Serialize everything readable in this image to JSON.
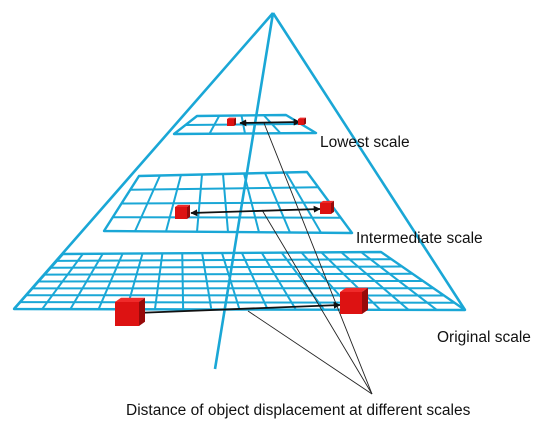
{
  "diagram": {
    "colors": {
      "grid": "#1aa7d6",
      "cube_front": "#dd1212",
      "cube_top": "#f02a2a",
      "cube_side": "#970a0a",
      "arrow": "#111111",
      "leader": "#222222"
    },
    "levels": [
      {
        "id": "lowest",
        "label": "Lowest scale",
        "grid_cells": "4x2"
      },
      {
        "id": "intermediate",
        "label": "Intermediate scale",
        "grid_cells": "8x4"
      },
      {
        "id": "original",
        "label": "Original scale",
        "grid_cells": "16x8"
      }
    ],
    "caption": "Distance of object displacement at different scales"
  }
}
